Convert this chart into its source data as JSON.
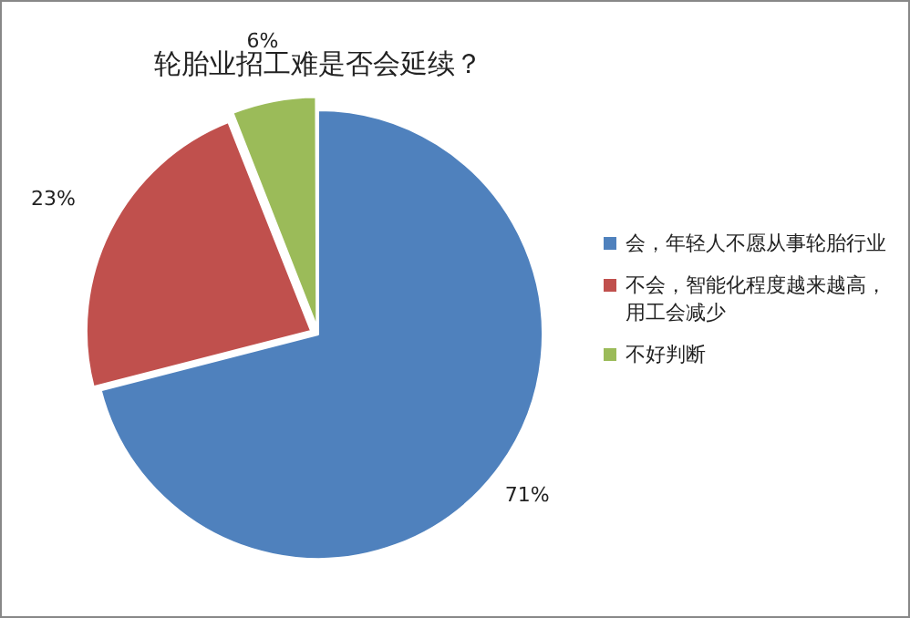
{
  "chart_data": {
    "type": "pie",
    "title": "轮胎业招工难是否会延续？",
    "categories": [
      "会，年轻人不愿从事轮胎行业",
      "不会，智能化程度越来越高，用工会减少",
      "不好判断"
    ],
    "values": [
      71,
      23,
      6
    ],
    "colors": [
      "#4f81bd",
      "#c0504d",
      "#9bbb59"
    ],
    "value_labels": [
      "71%",
      "23%",
      "6%"
    ],
    "legend": "right"
  }
}
